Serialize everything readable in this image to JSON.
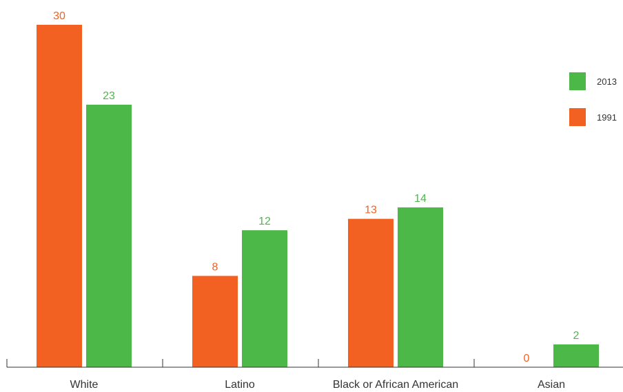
{
  "chart_data": {
    "type": "bar",
    "categories": [
      "White",
      "Latino",
      "Black or African American",
      "Asian"
    ],
    "series": [
      {
        "name": "1991",
        "values": [
          30,
          8,
          13,
          0
        ],
        "color": "#f26122"
      },
      {
        "name": "2013",
        "values": [
          23,
          12,
          14,
          2
        ],
        "color": "#4cb848"
      }
    ],
    "legend": {
      "placement": "right",
      "order": [
        "2013",
        "1991"
      ]
    },
    "ylim": [
      0,
      30
    ],
    "grid": false
  }
}
